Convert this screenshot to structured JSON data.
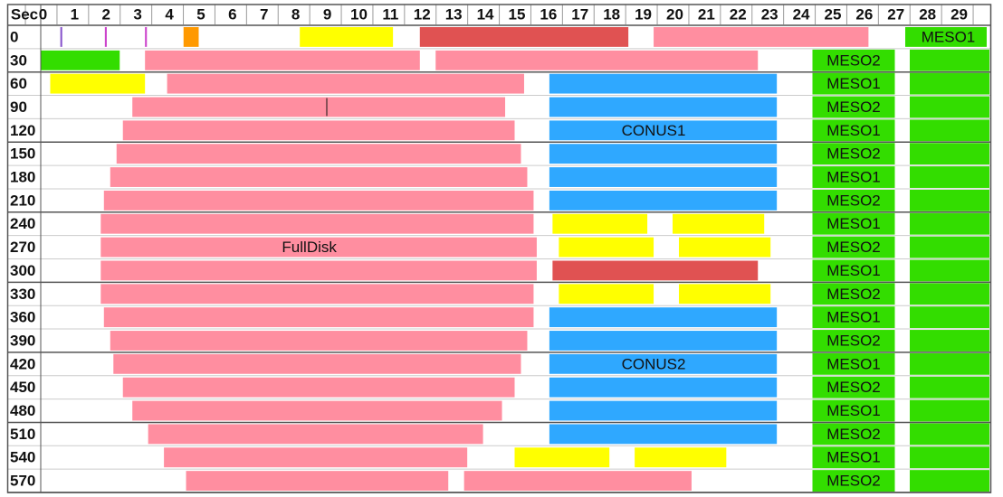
{
  "chart_data": {
    "type": "timeline",
    "corner_label": "Sec",
    "x_ticks": [
      "0",
      "1",
      "2",
      "3",
      "4",
      "5",
      "6",
      "7",
      "8",
      "9",
      "10",
      "11",
      "12",
      "13",
      "14",
      "15",
      "16",
      "17",
      "18",
      "19",
      "20",
      "21",
      "22",
      "23",
      "24",
      "25",
      "26",
      "27",
      "28",
      "29"
    ],
    "row_labels": [
      "0",
      "30",
      "60",
      "90",
      "120",
      "150",
      "180",
      "210",
      "240",
      "270",
      "300",
      "330",
      "360",
      "390",
      "420",
      "450",
      "480",
      "510",
      "540",
      "570"
    ],
    "colors": {
      "pink": "#ff8ea0",
      "red": "#e05252",
      "yellow": "#ffff00",
      "blue": "#2fa8ff",
      "green": "#33dd00",
      "orange": "#ff9900",
      "purple": "#8855cc",
      "magenta": "#cc44cc",
      "grid": "#9a9a9a",
      "divider": "#555555"
    },
    "group_labels": [
      {
        "text": "FullDisk",
        "row": 9,
        "x": 8.5
      },
      {
        "text": "CONUS1",
        "row": 4,
        "x": 19.4
      },
      {
        "text": "CONUS2",
        "row": 14,
        "x": 19.4
      }
    ],
    "meso_labels": [
      "MESO2",
      "MESO1",
      "MESO2",
      "MESO1",
      "MESO2",
      "MESO1",
      "MESO2",
      "MESO1",
      "MESO2",
      "MESO1",
      "MESO2",
      "MESO1",
      "MESO2",
      "MESO1",
      "MESO2",
      "MESO1",
      "MESO2",
      "MESO1",
      "MESO2"
    ],
    "meso_top_label": "MESO1",
    "segments": [
      {
        "row": 0,
        "start": 0.62,
        "end": 0.68,
        "color": "purple"
      },
      {
        "row": 0,
        "start": 2.03,
        "end": 2.09,
        "color": "magenta"
      },
      {
        "row": 0,
        "start": 3.3,
        "end": 3.36,
        "color": "magenta"
      },
      {
        "row": 0,
        "start": 4.52,
        "end": 5.0,
        "color": "orange"
      },
      {
        "row": 0,
        "start": 8.2,
        "end": 11.15,
        "color": "yellow"
      },
      {
        "row": 0,
        "start": 12.0,
        "end": 18.6,
        "color": "red"
      },
      {
        "row": 0,
        "start": 19.4,
        "end": 26.2,
        "color": "pink"
      },
      {
        "row": 1,
        "start": 0,
        "end": 2.5,
        "color": "green"
      },
      {
        "row": 1,
        "start": 3.3,
        "end": 12.0,
        "color": "pink"
      },
      {
        "row": 1,
        "start": 12.5,
        "end": 22.7,
        "color": "pink"
      },
      {
        "row": 2,
        "start": 0.3,
        "end": 3.3,
        "color": "yellow"
      },
      {
        "row": 2,
        "start": 4.0,
        "end": 15.3,
        "color": "pink"
      },
      {
        "row": 3,
        "start": 2.9,
        "end": 14.7,
        "color": "pink"
      },
      {
        "row": 4,
        "start": 2.6,
        "end": 15.0,
        "color": "pink"
      },
      {
        "row": 5,
        "start": 2.4,
        "end": 15.2,
        "color": "pink"
      },
      {
        "row": 6,
        "start": 2.2,
        "end": 15.4,
        "color": "pink"
      },
      {
        "row": 7,
        "start": 2.0,
        "end": 15.6,
        "color": "pink"
      },
      {
        "row": 8,
        "start": 1.9,
        "end": 15.6,
        "color": "pink"
      },
      {
        "row": 9,
        "start": 1.9,
        "end": 15.7,
        "color": "pink"
      },
      {
        "row": 10,
        "start": 1.9,
        "end": 15.7,
        "color": "pink"
      },
      {
        "row": 11,
        "start": 1.9,
        "end": 15.6,
        "color": "pink"
      },
      {
        "row": 12,
        "start": 2.0,
        "end": 15.6,
        "color": "pink"
      },
      {
        "row": 13,
        "start": 2.2,
        "end": 15.4,
        "color": "pink"
      },
      {
        "row": 14,
        "start": 2.3,
        "end": 15.2,
        "color": "pink"
      },
      {
        "row": 15,
        "start": 2.6,
        "end": 15.0,
        "color": "pink"
      },
      {
        "row": 16,
        "start": 2.9,
        "end": 14.6,
        "color": "pink"
      },
      {
        "row": 17,
        "start": 3.4,
        "end": 14.0,
        "color": "pink"
      },
      {
        "row": 18,
        "start": 3.9,
        "end": 13.5,
        "color": "pink"
      },
      {
        "row": 19,
        "start": 4.6,
        "end": 12.9,
        "color": "pink"
      },
      {
        "row": 19,
        "start": 13.4,
        "end": 20.6,
        "color": "pink"
      },
      {
        "row": 2,
        "start": 16.1,
        "end": 23.3,
        "color": "blue"
      },
      {
        "row": 3,
        "start": 16.1,
        "end": 23.3,
        "color": "blue"
      },
      {
        "row": 4,
        "start": 16.1,
        "end": 23.3,
        "color": "blue"
      },
      {
        "row": 5,
        "start": 16.1,
        "end": 23.3,
        "color": "blue"
      },
      {
        "row": 6,
        "start": 16.1,
        "end": 23.3,
        "color": "blue"
      },
      {
        "row": 7,
        "start": 16.1,
        "end": 23.3,
        "color": "blue"
      },
      {
        "row": 8,
        "start": 16.2,
        "end": 19.2,
        "color": "yellow"
      },
      {
        "row": 8,
        "start": 20.0,
        "end": 22.9,
        "color": "yellow"
      },
      {
        "row": 9,
        "start": 16.4,
        "end": 19.4,
        "color": "yellow"
      },
      {
        "row": 9,
        "start": 20.2,
        "end": 23.1,
        "color": "yellow"
      },
      {
        "row": 10,
        "start": 16.2,
        "end": 22.7,
        "color": "red"
      },
      {
        "row": 11,
        "start": 16.4,
        "end": 19.4,
        "color": "yellow"
      },
      {
        "row": 11,
        "start": 20.2,
        "end": 23.1,
        "color": "yellow"
      },
      {
        "row": 12,
        "start": 16.1,
        "end": 23.3,
        "color": "blue"
      },
      {
        "row": 13,
        "start": 16.1,
        "end": 23.3,
        "color": "blue"
      },
      {
        "row": 14,
        "start": 16.1,
        "end": 23.3,
        "color": "blue"
      },
      {
        "row": 15,
        "start": 16.1,
        "end": 23.3,
        "color": "blue"
      },
      {
        "row": 16,
        "start": 16.1,
        "end": 23.3,
        "color": "blue"
      },
      {
        "row": 17,
        "start": 16.1,
        "end": 23.3,
        "color": "blue"
      },
      {
        "row": 18,
        "start": 15.0,
        "end": 18.0,
        "color": "yellow"
      },
      {
        "row": 18,
        "start": 18.8,
        "end": 21.7,
        "color": "yellow"
      }
    ]
  }
}
